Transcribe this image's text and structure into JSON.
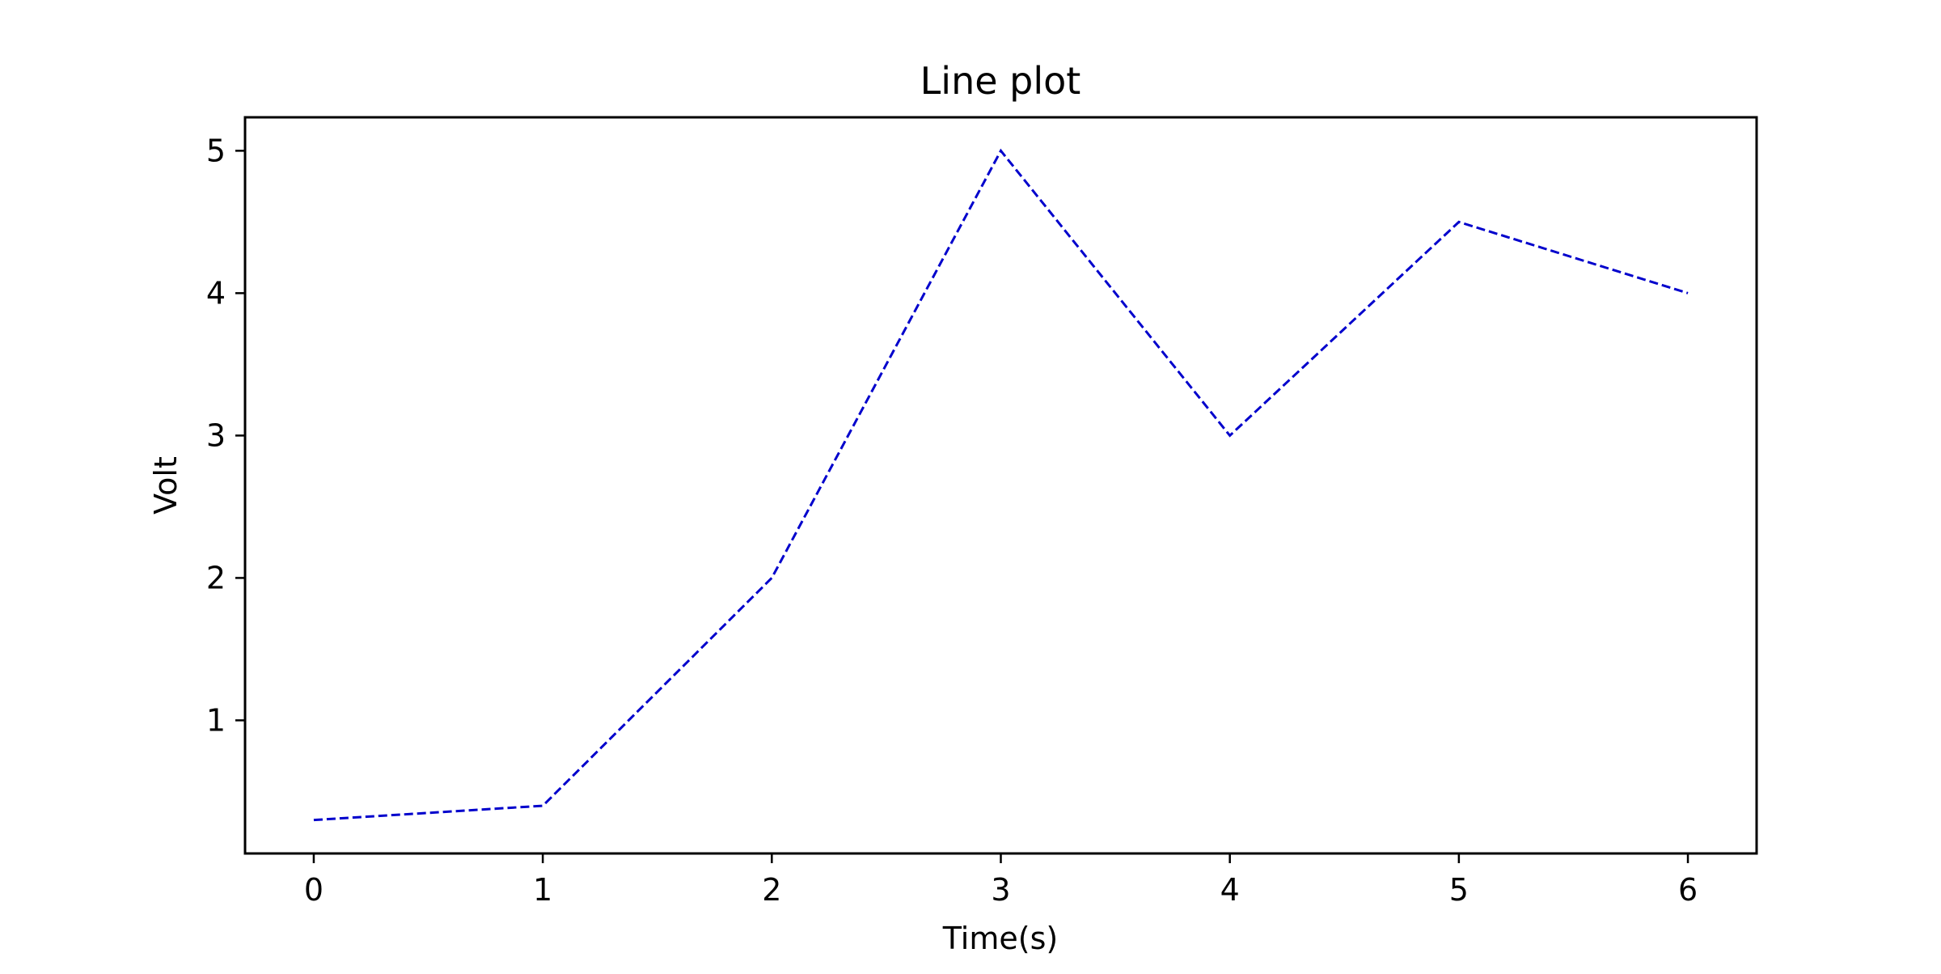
{
  "chart_data": {
    "type": "line",
    "title": "Line plot",
    "xlabel": "Time(s)",
    "ylabel": "Volt",
    "x": [
      0,
      1,
      2,
      3,
      4,
      5,
      6
    ],
    "series": [
      {
        "name": "Volt",
        "values": [
          0.3,
          0.4,
          2,
          5,
          3,
          4.5,
          4
        ],
        "color": "#0000cc",
        "line_style": "dashed"
      }
    ],
    "xlim": [
      -0.3,
      6.3
    ],
    "ylim": [
      0.065,
      5.235
    ],
    "xticks": [
      0,
      1,
      2,
      3,
      4,
      5,
      6
    ],
    "xtick_labels": [
      "0",
      "1",
      "2",
      "3",
      "4",
      "5",
      "6"
    ],
    "yticks": [
      1,
      2,
      3,
      4,
      5
    ],
    "ytick_labels": [
      "1",
      "2",
      "3",
      "4",
      "5"
    ],
    "grid": false,
    "legend": "none"
  }
}
